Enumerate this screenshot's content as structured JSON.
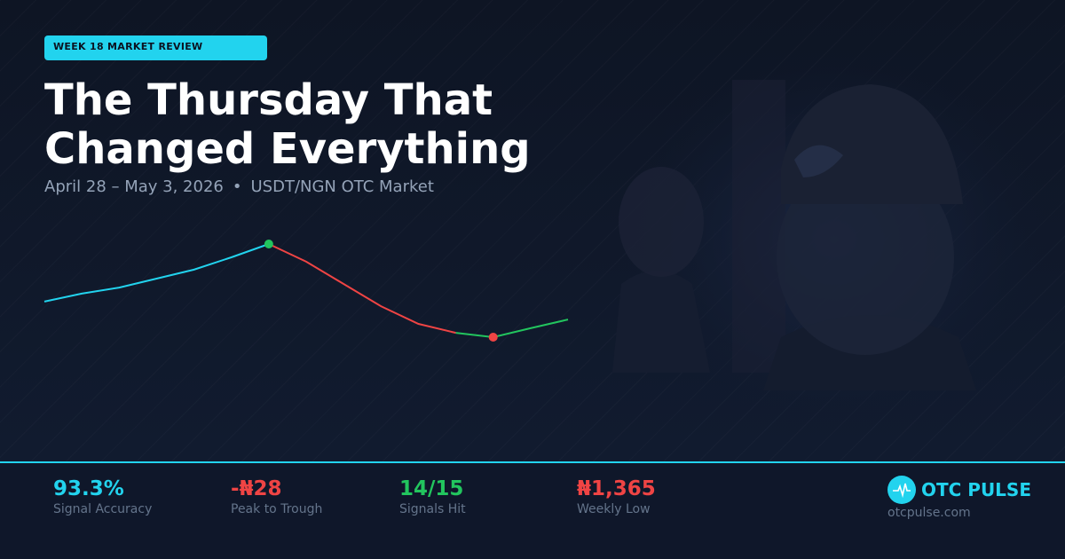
{
  "badge": "WEEK 18 MARKET REVIEW",
  "title": "The Thursday That Changed Everything",
  "subtitle": {
    "dates": "April 28 – May 3, 2026",
    "separator": "•",
    "market": "USDT/NGN OTC Market"
  },
  "chart_data": {
    "type": "line",
    "categories": [
      null,
      null,
      null,
      null,
      null,
      null,
      null,
      null,
      null,
      null,
      null,
      null,
      null,
      null,
      null
    ],
    "series": [
      {
        "color": "#22d3ee",
        "values": [
          1375.7,
          1378.1,
          1379.9,
          1382.6,
          1385.3,
          1389,
          1393,
          null,
          null,
          null,
          null,
          null,
          null,
          null,
          null
        ]
      },
      {
        "color": "#ef4444",
        "values": [
          null,
          null,
          null,
          null,
          null,
          null,
          1393,
          1387.7,
          1381,
          1374.3,
          1369,
          1366.3,
          null,
          null,
          null
        ]
      },
      {
        "color": "#22c55e",
        "values": [
          null,
          null,
          null,
          null,
          null,
          null,
          null,
          null,
          null,
          null,
          null,
          1366.3,
          1365,
          1367.7,
          1370.3
        ]
      }
    ],
    "ylim": [
      1350,
      1410
    ],
    "marker_colors": {
      "max": "#22c55e",
      "min": "#ef4444"
    }
  },
  "stats": [
    {
      "value": "93.3%",
      "label": "Signal Accuracy"
    },
    {
      "value": "-₦28",
      "label": "Peak to Trough"
    },
    {
      "value": "14/15",
      "label": "Signals Hit"
    },
    {
      "value": "₦1,365",
      "label": "Weekly Low"
    }
  ],
  "brand": {
    "name": "OTC PULSE",
    "url": "otcpulse.com"
  }
}
